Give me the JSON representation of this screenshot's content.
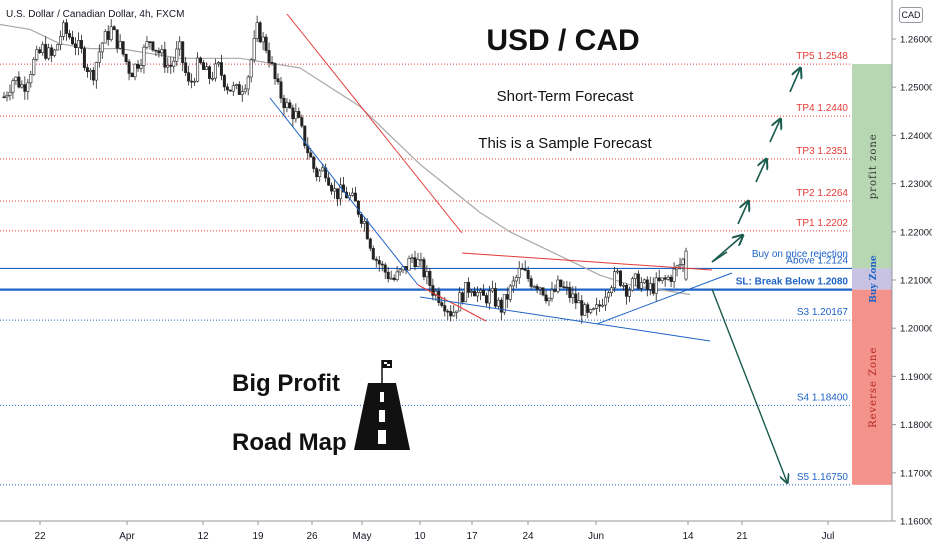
{
  "symbol_label": "U.S. Dollar / Canadian Dollar, 4h, FXCM",
  "currency_badge": "CAD",
  "title": "USD / CAD",
  "subtitle": "Short-Term Forecast",
  "note": "This is a Sample Forecast",
  "brand": {
    "line1": "Big Profit",
    "line2": "Road Map"
  },
  "zones": {
    "profit": "profit zone",
    "buy": "Buy Zone",
    "reverse": "Reverse Zone"
  },
  "colors": {
    "tp": "#e53935",
    "support": "#1e63c6",
    "profit_zone": "#b6d7b2",
    "buy_zone": "#c8c3e3",
    "reverse_zone": "#f4928c",
    "arrow": "#1a5b4e",
    "bull": "#3a3a3a",
    "bear": "#2b2b2b"
  },
  "chart_data": {
    "type": "candlestick",
    "y_ticks": [
      "1.26000",
      "1.25000",
      "1.24000",
      "1.23000",
      "1.22000",
      "1.21000",
      "1.20000",
      "1.19000",
      "1.18000",
      "1.17000",
      "1.16000"
    ],
    "y_range": [
      1.157,
      1.268
    ],
    "x_ticks": [
      "22",
      "Apr",
      "12",
      "19",
      "26",
      "May",
      "10",
      "17",
      "24",
      "Jun",
      "14",
      "21",
      "Jul"
    ],
    "levels": [
      {
        "label": "TP5 1.2548",
        "value": 1.2548,
        "kind": "tp"
      },
      {
        "label": "TP4 1.2440",
        "value": 1.244,
        "kind": "tp"
      },
      {
        "label": "TP3 1.2351",
        "value": 1.2351,
        "kind": "tp"
      },
      {
        "label": "TP2 1.2264",
        "value": 1.2264,
        "kind": "tp"
      },
      {
        "label": "TP1 1.2202",
        "value": 1.2202,
        "kind": "tp"
      },
      {
        "label": "Buy on price rejection",
        "value": 1.2152,
        "kind": "note"
      },
      {
        "label": "Above 1.2124",
        "value": 1.2124,
        "kind": "support"
      },
      {
        "label": "SL: Break Below 1.2080",
        "value": 1.208,
        "kind": "sl"
      },
      {
        "label": "S3 1.20167",
        "value": 1.20167,
        "kind": "support"
      },
      {
        "label": "S4 1.18400",
        "value": 1.184,
        "kind": "support"
      },
      {
        "label": "S5 1.16750",
        "value": 1.1675,
        "kind": "support"
      }
    ],
    "close_path": [
      1.248,
      1.252,
      1.25,
      1.255,
      1.258,
      1.256,
      1.262,
      1.26,
      1.257,
      1.252,
      1.259,
      1.262,
      1.258,
      1.253,
      1.256,
      1.26,
      1.257,
      1.254,
      1.258,
      1.25,
      1.255,
      1.252,
      1.254,
      1.25,
      1.249,
      1.252,
      1.262,
      1.258,
      1.25,
      1.246,
      1.244,
      1.238,
      1.232,
      1.233,
      1.228,
      1.228,
      1.226,
      1.222,
      1.215,
      1.212,
      1.21,
      1.212,
      1.215,
      1.212,
      1.208,
      1.206,
      1.203,
      1.207,
      1.209,
      1.206,
      1.207,
      1.204,
      1.208,
      1.212,
      1.21,
      1.209,
      1.206,
      1.209,
      1.207,
      1.205,
      1.202,
      1.204,
      1.209,
      1.211,
      1.208,
      1.21,
      1.208,
      1.209,
      1.21,
      1.212,
      1.215
    ],
    "ma_path": [
      1.263,
      1.262,
      1.259,
      1.258,
      1.258,
      1.257,
      1.256,
      1.256,
      1.256,
      1.255,
      1.254,
      1.25,
      1.246,
      1.24,
      1.234,
      1.229,
      1.224,
      1.22,
      1.217,
      1.214,
      1.211,
      1.209,
      1.208,
      1.207
    ]
  }
}
